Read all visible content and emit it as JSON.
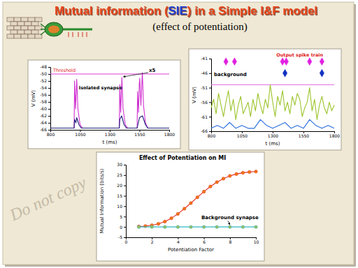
{
  "slide": {
    "title": [
      "Mutual information (",
      "SIE",
      ") in a Simple I&F model"
    ],
    "subtitle": "(effect of potentiation)",
    "watermark": "Do not copy"
  },
  "chart_data": [
    {
      "type": "line",
      "x_label": "t (ms)",
      "y_label": "V (mV)",
      "xlim": [
        800,
        1800
      ],
      "xticks": [
        800,
        1050,
        1300,
        1550,
        1800
      ],
      "ylim": [
        -66,
        -48
      ],
      "yticks": [
        -66,
        -64,
        -62,
        -60,
        -58,
        -56,
        -54,
        -52,
        -50,
        -48
      ],
      "series": [
        {
          "name": "Threshold",
          "color": "#e040d8",
          "x": [
            800,
            1800
          ],
          "values": [
            -50,
            -50
          ]
        },
        {
          "color": "#d030d0",
          "x": [
            800,
            1000,
            1004,
            1012,
            1018,
            1022,
            1032,
            1050,
            1070,
            1380,
            1384,
            1392,
            1398,
            1402,
            1412,
            1430,
            1450,
            1530,
            1534,
            1542,
            1548,
            1552,
            1562,
            1568,
            1574,
            1584,
            1600,
            1620,
            1800
          ],
          "values": [
            -65.5,
            -65.5,
            -52,
            -60,
            -55,
            -51.5,
            -60,
            -64.5,
            -65.5,
            -65.5,
            -53,
            -61,
            -55,
            -51,
            -60,
            -64.5,
            -65.5,
            -65.5,
            -55,
            -61,
            -53,
            -51.2,
            -59,
            -54,
            -49.6,
            -59,
            -64,
            -65.5,
            -65.5
          ]
        },
        {
          "color": "#1c1c78",
          "x": [
            800,
            1000,
            1004,
            1015,
            1022,
            1040,
            1060,
            1380,
            1384,
            1400,
            1420,
            1440,
            1530,
            1550,
            1575,
            1600,
            1620,
            1800
          ],
          "values": [
            -65.5,
            -65.5,
            -63,
            -64,
            -62.5,
            -64.5,
            -65.5,
            -65.5,
            -63,
            -62,
            -64.5,
            -65.5,
            -65.5,
            -62.5,
            -62,
            -64.5,
            -65.5,
            -65.5
          ]
        }
      ],
      "annotations": [
        "Isolated synapse",
        "x5"
      ]
    },
    {
      "type": "line",
      "x_label": "t (ms)",
      "y_label": "V (mV)",
      "xlim": [
        800,
        1800
      ],
      "xticks": [
        800,
        1050,
        1300,
        1550,
        1800
      ],
      "ylim": [
        -66,
        -41
      ],
      "yticks": [
        -66,
        -61,
        -56,
        -51,
        -46,
        -41
      ],
      "series": [
        {
          "color": "#e070e0",
          "x": [
            800,
            1800
          ],
          "values": [
            -50,
            -50
          ]
        },
        {
          "name": "background",
          "color": "#9cc42c",
          "x": [
            800,
            820,
            840,
            860,
            880,
            900,
            920,
            940,
            960,
            980,
            1000,
            1020,
            1040,
            1060,
            1080,
            1100,
            1120,
            1140,
            1160,
            1180,
            1200,
            1220,
            1240,
            1260,
            1280,
            1300,
            1320,
            1340,
            1360,
            1380,
            1400,
            1420,
            1440,
            1460,
            1480,
            1500,
            1520,
            1540,
            1560,
            1580,
            1600,
            1620,
            1640,
            1660,
            1680,
            1700,
            1720,
            1740,
            1760,
            1780,
            1800
          ],
          "values": [
            -58,
            -55,
            -60,
            -53,
            -57,
            -61,
            -56,
            -52,
            -59,
            -55,
            -62,
            -57,
            -54,
            -60,
            -58,
            -56,
            -61,
            -55,
            -59,
            -53,
            -57,
            -60,
            -55,
            -58,
            -50,
            -56,
            -61,
            -54,
            -57,
            -52,
            -59,
            -56,
            -60,
            -54,
            -57,
            -53,
            -55,
            -61,
            -58,
            -56,
            -51,
            -59,
            -55,
            -62,
            -57,
            -54,
            -58,
            -60,
            -56,
            -59,
            -57
          ]
        },
        {
          "color": "#2a6ee0",
          "x": [
            800,
            850,
            900,
            950,
            1000,
            1050,
            1100,
            1150,
            1200,
            1250,
            1300,
            1350,
            1400,
            1450,
            1500,
            1550,
            1600,
            1650,
            1700,
            1750,
            1800
          ],
          "values": [
            -65,
            -64,
            -65,
            -63,
            -65,
            -64,
            -65,
            -65,
            -62,
            -64,
            -65,
            -64,
            -63,
            -65,
            -64,
            -65,
            -62,
            -64,
            -65,
            -64,
            -65
          ]
        },
        {
          "name": "Output spike train",
          "type": "scatter",
          "marker": "diamond",
          "color": "#e020e0",
          "x": [
            920,
            990,
            1380,
            1410,
            1600,
            1700
          ],
          "values": [
            -42,
            -42,
            -42,
            -42,
            -42,
            -42
          ]
        },
        {
          "type": "scatter",
          "marker": "diamond",
          "color": "#1030c0",
          "x": [
            1400,
            1700
          ],
          "values": [
            -46,
            -46
          ]
        }
      ]
    },
    {
      "type": "line",
      "title": "Effect of Potentiation on MI",
      "x_label": "Potentiation Factor",
      "y_label": "Mutual Information (bits/s)",
      "xlim": [
        0,
        10
      ],
      "xticks": [
        0,
        2,
        4,
        6,
        8,
        10
      ],
      "ylim": [
        -5,
        30
      ],
      "yticks": [
        -5,
        0,
        5,
        10,
        15,
        20,
        25,
        30
      ],
      "series": [
        {
          "color": "#e03020",
          "marker": "circle",
          "x": [
            1,
            1.5,
            2,
            2.5,
            3,
            3.5,
            4,
            4.5,
            5,
            5.5,
            6,
            6.5,
            7,
            7.5,
            8,
            8.5,
            9,
            9.5,
            10
          ],
          "values": [
            0.2,
            0.4,
            0.8,
            1.5,
            2.6,
            4.2,
            6.3,
            8.8,
            11.5,
            14.3,
            17,
            19.5,
            21.6,
            23.3,
            24.6,
            25.5,
            26.1,
            26.5,
            26.7
          ]
        },
        {
          "name": "Background synapse",
          "color": "#30b8c0",
          "marker": "circle",
          "x": [
            1,
            2,
            3,
            4,
            5,
            6,
            7,
            8,
            9,
            10
          ],
          "values": [
            0,
            0,
            0,
            0,
            0,
            0,
            0,
            0,
            0,
            0
          ]
        }
      ]
    }
  ]
}
